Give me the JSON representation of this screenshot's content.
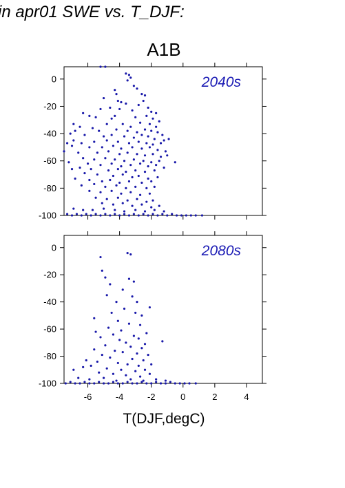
{
  "figure": {
    "title": "in apr01 SWE vs. T_DJF:",
    "scenario": "A1B"
  },
  "colors": {
    "points": "#1a1aaa",
    "label": "#1a1ab4",
    "frame": "#000000"
  },
  "chart_data": {
    "type": "scatter",
    "xlabel": "T(DJF,degC)",
    "xlim": [
      -7.5,
      5
    ],
    "x_ticks": [
      -6,
      -4,
      -2,
      0,
      2,
      4
    ],
    "x_tick_labels": [
      "-6",
      "-4",
      "-2",
      "0",
      "2",
      "4"
    ],
    "ylim": [
      -100,
      9
    ],
    "y_ticks": [
      0,
      -20,
      -40,
      -60,
      -80,
      -100
    ],
    "y_tick_labels": [
      "0",
      "-20",
      "-40",
      "-60",
      "-80",
      "-100"
    ],
    "grid": false,
    "panels": [
      {
        "label": "2040s",
        "points": [
          [
            -5.2,
            9
          ],
          [
            -4.9,
            9
          ],
          [
            -3.6,
            4
          ],
          [
            -3.4,
            3
          ],
          [
            -3.3,
            1
          ],
          [
            -3.5,
            -1
          ],
          [
            -3.1,
            -5
          ],
          [
            -2.9,
            -7
          ],
          [
            -2.6,
            -11
          ],
          [
            -2.4,
            -12
          ],
          [
            -4.3,
            -8
          ],
          [
            -4.2,
            -11
          ],
          [
            -5.0,
            -14
          ],
          [
            -4.1,
            -16
          ],
          [
            -3.9,
            -17
          ],
          [
            -3.6,
            -18
          ],
          [
            -2.5,
            -16
          ],
          [
            -2.8,
            -19
          ],
          [
            -2.2,
            -21
          ],
          [
            -4.6,
            -21
          ],
          [
            -5.2,
            -22
          ],
          [
            -4.0,
            -22
          ],
          [
            -3.2,
            -23
          ],
          [
            -2.0,
            -24
          ],
          [
            -1.7,
            -25
          ],
          [
            -6.3,
            -25
          ],
          [
            -5.9,
            -27
          ],
          [
            -5.5,
            -28
          ],
          [
            -4.3,
            -27
          ],
          [
            -4.5,
            -29
          ],
          [
            -3.0,
            -28
          ],
          [
            -2.3,
            -27
          ],
          [
            -1.9,
            -29
          ],
          [
            -1.5,
            -31
          ],
          [
            -6.9,
            -33
          ],
          [
            -6.5,
            -35
          ],
          [
            -5.7,
            -36
          ],
          [
            -4.8,
            -33
          ],
          [
            -3.8,
            -33
          ],
          [
            -3.3,
            -35
          ],
          [
            -2.7,
            -32
          ],
          [
            -2.1,
            -33
          ],
          [
            -1.7,
            -35
          ],
          [
            -6.8,
            -38
          ],
          [
            -5.3,
            -38
          ],
          [
            -4.2,
            -37
          ],
          [
            -3.5,
            -38
          ],
          [
            -2.9,
            -39
          ],
          [
            -2.4,
            -37
          ],
          [
            -2.0,
            -38
          ],
          [
            -1.6,
            -39
          ],
          [
            -1.3,
            -41
          ],
          [
            -7.1,
            -40
          ],
          [
            -6.2,
            -41
          ],
          [
            -5.0,
            -42
          ],
          [
            -4.5,
            -41
          ],
          [
            -3.7,
            -42
          ],
          [
            -3.1,
            -43
          ],
          [
            -2.6,
            -41
          ],
          [
            -2.2,
            -42
          ],
          [
            -1.8,
            -44
          ],
          [
            -1.2,
            -45
          ],
          [
            -0.9,
            -44
          ],
          [
            -7.3,
            -47
          ],
          [
            -6.9,
            -45
          ],
          [
            -6.4,
            -47
          ],
          [
            -5.6,
            -46
          ],
          [
            -4.8,
            -45
          ],
          [
            -4.1,
            -46
          ],
          [
            -3.4,
            -47
          ],
          [
            -2.8,
            -46
          ],
          [
            -2.3,
            -47
          ],
          [
            -1.9,
            -48
          ],
          [
            -1.4,
            -47
          ],
          [
            -7.0,
            -49
          ],
          [
            -5.9,
            -50
          ],
          [
            -5.1,
            -50
          ],
          [
            -4.4,
            -49
          ],
          [
            -3.9,
            -51
          ],
          [
            -3.2,
            -50
          ],
          [
            -2.6,
            -51
          ],
          [
            -2.1,
            -50
          ],
          [
            -1.6,
            -52
          ],
          [
            -1.1,
            -53
          ],
          [
            -7.5,
            -53
          ],
          [
            -6.6,
            -54
          ],
          [
            -5.4,
            -54
          ],
          [
            -4.7,
            -53
          ],
          [
            -4.0,
            -55
          ],
          [
            -3.5,
            -54
          ],
          [
            -2.9,
            -55
          ],
          [
            -2.4,
            -56
          ],
          [
            -1.9,
            -55
          ],
          [
            -1.4,
            -57
          ],
          [
            -1.0,
            -56
          ],
          [
            -6.3,
            -58
          ],
          [
            -5.6,
            -59
          ],
          [
            -4.9,
            -58
          ],
          [
            -4.3,
            -59
          ],
          [
            -3.7,
            -60
          ],
          [
            -3.1,
            -59
          ],
          [
            -2.5,
            -60
          ],
          [
            -2.0,
            -61
          ],
          [
            -1.5,
            -60
          ],
          [
            -0.5,
            -61
          ],
          [
            -7.2,
            -61
          ],
          [
            -6.0,
            -62
          ],
          [
            -5.2,
            -63
          ],
          [
            -4.5,
            -62
          ],
          [
            -3.9,
            -64
          ],
          [
            -3.3,
            -63
          ],
          [
            -2.7,
            -62
          ],
          [
            -2.2,
            -64
          ],
          [
            -1.7,
            -63
          ],
          [
            -1.2,
            -65
          ],
          [
            -7.0,
            -66
          ],
          [
            -6.5,
            -65
          ],
          [
            -5.8,
            -66
          ],
          [
            -4.7,
            -67
          ],
          [
            -4.1,
            -66
          ],
          [
            -3.6,
            -68
          ],
          [
            -3.0,
            -67
          ],
          [
            -2.4,
            -68
          ],
          [
            -1.8,
            -67
          ],
          [
            -6.2,
            -69
          ],
          [
            -5.4,
            -70
          ],
          [
            -4.4,
            -71
          ],
          [
            -3.8,
            -70
          ],
          [
            -3.2,
            -72
          ],
          [
            -2.8,
            -71
          ],
          [
            -2.2,
            -73
          ],
          [
            -1.6,
            -72
          ],
          [
            -6.8,
            -73
          ],
          [
            -5.9,
            -74
          ],
          [
            -5.1,
            -75
          ],
          [
            -4.6,
            -74
          ],
          [
            -4.0,
            -76
          ],
          [
            -3.4,
            -75
          ],
          [
            -2.6,
            -76
          ],
          [
            -2.0,
            -75
          ],
          [
            -6.4,
            -78
          ],
          [
            -5.6,
            -77
          ],
          [
            -4.9,
            -79
          ],
          [
            -4.2,
            -78
          ],
          [
            -3.6,
            -80
          ],
          [
            -3.0,
            -79
          ],
          [
            -2.3,
            -80
          ],
          [
            -1.8,
            -79
          ],
          [
            -5.9,
            -82
          ],
          [
            -5.2,
            -83
          ],
          [
            -4.5,
            -82
          ],
          [
            -3.9,
            -84
          ],
          [
            -3.3,
            -83
          ],
          [
            -2.7,
            -85
          ],
          [
            -2.1,
            -84
          ],
          [
            -5.5,
            -87
          ],
          [
            -4.8,
            -88
          ],
          [
            -4.1,
            -87
          ],
          [
            -3.5,
            -89
          ],
          [
            -2.9,
            -88
          ],
          [
            -2.3,
            -90
          ],
          [
            -1.9,
            -89
          ],
          [
            -5.1,
            -91
          ],
          [
            -4.4,
            -92
          ],
          [
            -3.8,
            -91
          ],
          [
            -3.2,
            -93
          ],
          [
            -2.6,
            -92
          ],
          [
            -2.0,
            -94
          ],
          [
            -1.5,
            -93
          ],
          [
            -6.9,
            -95
          ],
          [
            -6.3,
            -96
          ],
          [
            -5.7,
            -96
          ],
          [
            -5.0,
            -95
          ],
          [
            -4.3,
            -96
          ],
          [
            -3.7,
            -97
          ],
          [
            -3.0,
            -96
          ],
          [
            -2.4,
            -97
          ],
          [
            -1.8,
            -96
          ],
          [
            -1.2,
            -97
          ],
          [
            -7.3,
            -99
          ],
          [
            -7.0,
            -100
          ],
          [
            -6.7,
            -99
          ],
          [
            -6.4,
            -100
          ],
          [
            -6.1,
            -99
          ],
          [
            -5.8,
            -100
          ],
          [
            -5.5,
            -99
          ],
          [
            -5.2,
            -100
          ],
          [
            -4.9,
            -99
          ],
          [
            -4.6,
            -100
          ],
          [
            -4.3,
            -99
          ],
          [
            -4.0,
            -100
          ],
          [
            -3.7,
            -99
          ],
          [
            -3.4,
            -100
          ],
          [
            -3.1,
            -99
          ],
          [
            -2.8,
            -100
          ],
          [
            -2.5,
            -99
          ],
          [
            -2.2,
            -100
          ],
          [
            -1.9,
            -99
          ],
          [
            -1.6,
            -100
          ],
          [
            -1.3,
            -99
          ],
          [
            -1.0,
            -100
          ],
          [
            -0.7,
            -99
          ],
          [
            -0.4,
            -100
          ],
          [
            -0.1,
            -100
          ],
          [
            0.2,
            -100
          ],
          [
            0.5,
            -100
          ],
          [
            0.8,
            -100
          ],
          [
            1.2,
            -100
          ]
        ]
      },
      {
        "label": "2080s",
        "points": [
          [
            -3.5,
            -4
          ],
          [
            -3.3,
            -5
          ],
          [
            -5.2,
            -7
          ],
          [
            -5.1,
            -17
          ],
          [
            -4.9,
            -22
          ],
          [
            -3.4,
            -23
          ],
          [
            -3.1,
            -25
          ],
          [
            -4.6,
            -27
          ],
          [
            -3.8,
            -31
          ],
          [
            -4.8,
            -35
          ],
          [
            -3.2,
            -36
          ],
          [
            -2.9,
            -40
          ],
          [
            -4.2,
            -40
          ],
          [
            -2.1,
            -44
          ],
          [
            -3.7,
            -45
          ],
          [
            -4.5,
            -48
          ],
          [
            -3.0,
            -48
          ],
          [
            -2.6,
            -50
          ],
          [
            -5.6,
            -52
          ],
          [
            -4.1,
            -54
          ],
          [
            -3.4,
            -56
          ],
          [
            -2.7,
            -57
          ],
          [
            -4.7,
            -59
          ],
          [
            -3.9,
            -61
          ],
          [
            -5.5,
            -62
          ],
          [
            -2.3,
            -63
          ],
          [
            -4.4,
            -64
          ],
          [
            -3.1,
            -65
          ],
          [
            -5.2,
            -66
          ],
          [
            -2.8,
            -67
          ],
          [
            -4.0,
            -68
          ],
          [
            -3.6,
            -70
          ],
          [
            -2.4,
            -71
          ],
          [
            -1.3,
            -69
          ],
          [
            -4.9,
            -72
          ],
          [
            -3.3,
            -73
          ],
          [
            -2.6,
            -74
          ],
          [
            -5.6,
            -75
          ],
          [
            -4.3,
            -76
          ],
          [
            -3.8,
            -77
          ],
          [
            -2.9,
            -78
          ],
          [
            -2.2,
            -79
          ],
          [
            -5.1,
            -79
          ],
          [
            -4.6,
            -81
          ],
          [
            -3.2,
            -82
          ],
          [
            -2.5,
            -83
          ],
          [
            -6.1,
            -83
          ],
          [
            -5.4,
            -84
          ],
          [
            -4.1,
            -85
          ],
          [
            -3.5,
            -86
          ],
          [
            -2.8,
            -87
          ],
          [
            -2.0,
            -86
          ],
          [
            -6.3,
            -88
          ],
          [
            -5.8,
            -87
          ],
          [
            -4.8,
            -89
          ],
          [
            -3.9,
            -90
          ],
          [
            -3.0,
            -91
          ],
          [
            -2.4,
            -90
          ],
          [
            -6.9,
            -90
          ],
          [
            -5.3,
            -92
          ],
          [
            -4.4,
            -93
          ],
          [
            -3.6,
            -94
          ],
          [
            -2.7,
            -95
          ],
          [
            -2.1,
            -93
          ],
          [
            -6.6,
            -96
          ],
          [
            -5.9,
            -97
          ],
          [
            -5.0,
            -96
          ],
          [
            -4.2,
            -98
          ],
          [
            -3.3,
            -97
          ],
          [
            -2.5,
            -98
          ],
          [
            -1.7,
            -97
          ],
          [
            -1.1,
            -98
          ],
          [
            -7.4,
            -100
          ],
          [
            -7.1,
            -99
          ],
          [
            -6.8,
            -100
          ],
          [
            -6.5,
            -100
          ],
          [
            -6.2,
            -99
          ],
          [
            -5.9,
            -100
          ],
          [
            -5.6,
            -100
          ],
          [
            -5.3,
            -99
          ],
          [
            -5.0,
            -100
          ],
          [
            -4.7,
            -100
          ],
          [
            -4.4,
            -99
          ],
          [
            -4.1,
            -100
          ],
          [
            -3.8,
            -100
          ],
          [
            -3.5,
            -99
          ],
          [
            -3.2,
            -100
          ],
          [
            -2.9,
            -100
          ],
          [
            -2.6,
            -99
          ],
          [
            -2.3,
            -100
          ],
          [
            -2.0,
            -100
          ],
          [
            -1.7,
            -99
          ],
          [
            -1.4,
            -100
          ],
          [
            -1.1,
            -100
          ],
          [
            -0.8,
            -99
          ],
          [
            -0.5,
            -100
          ],
          [
            -0.2,
            -100
          ],
          [
            0.1,
            -100
          ],
          [
            0.4,
            -100
          ],
          [
            0.8,
            -100
          ]
        ]
      }
    ]
  }
}
